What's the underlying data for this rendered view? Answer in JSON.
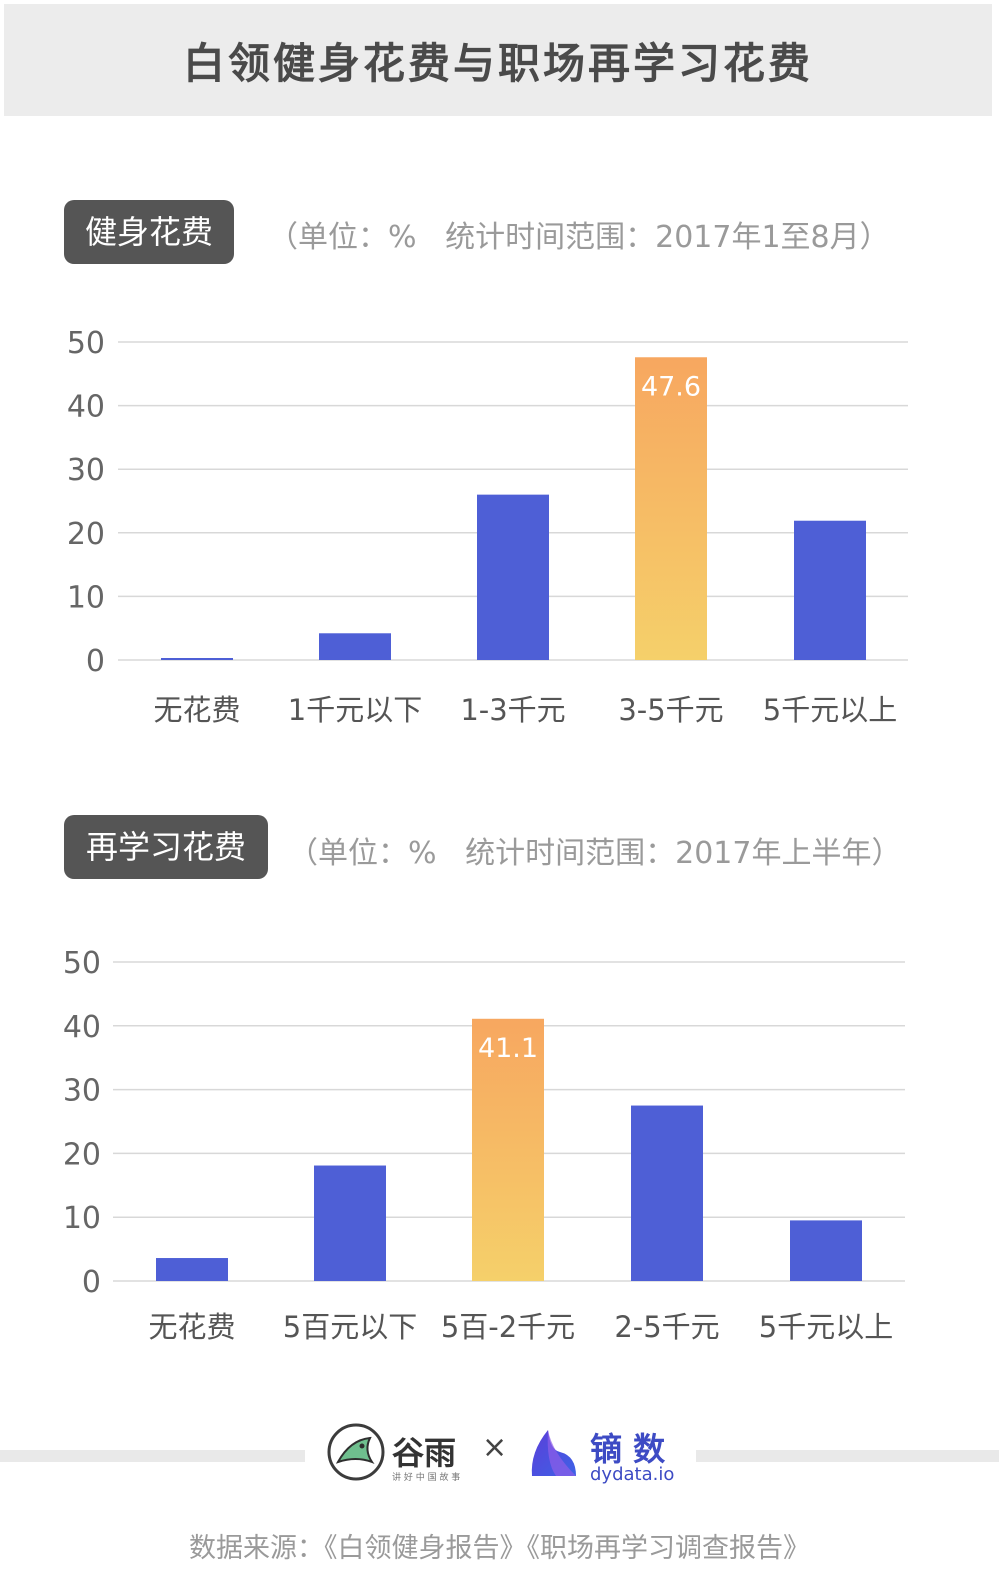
{
  "title": "白领健身花费与职场再学习花费",
  "colors": {
    "bar": "#4e5fd6",
    "highlight_top": "#f7a760",
    "highlight_bottom": "#f5d06a",
    "grid": "#d8d8d8",
    "tag_bg": "#555555"
  },
  "sections": [
    {
      "tag": "健身花费",
      "note_unit": "（单位：%",
      "note_range": "统计时间范围：2017年1至8月）"
    },
    {
      "tag": "再学习花费",
      "note_unit": "（单位：%",
      "note_range": "统计时间范围：2017年上半年）"
    }
  ],
  "chart_data": [
    {
      "type": "bar",
      "categories": [
        "无花费",
        "1千元以下",
        "1-3千元",
        "3-5千元",
        "5千元以上"
      ],
      "values": [
        0.3,
        4.2,
        26.0,
        47.6,
        21.9
      ],
      "data_labels": [
        "",
        "",
        "",
        "47.6",
        ""
      ],
      "highlight_index": 3,
      "ylim": [
        0,
        50
      ],
      "yticks": [
        0,
        10,
        20,
        30,
        40,
        50
      ],
      "grid": true
    },
    {
      "type": "bar",
      "categories": [
        "无花费",
        "5百元以下",
        "5百-2千元",
        "2-5千元",
        "5千元以上"
      ],
      "values": [
        3.6,
        18.1,
        41.1,
        27.5,
        9.5
      ],
      "data_labels": [
        "",
        "",
        "41.1",
        "",
        ""
      ],
      "highlight_index": 2,
      "ylim": [
        0,
        50
      ],
      "yticks": [
        0,
        10,
        20,
        30,
        40,
        50
      ],
      "grid": true
    }
  ],
  "footer": {
    "logo_left_text": "谷雨",
    "logo_left_sub": "讲 好 中 国 故 事",
    "times": "×",
    "logo_right_text": "镝 数",
    "logo_right_sub": "dydata.io",
    "source": "数据来源：《白领健身报告》《职场再学习调查报告》"
  }
}
